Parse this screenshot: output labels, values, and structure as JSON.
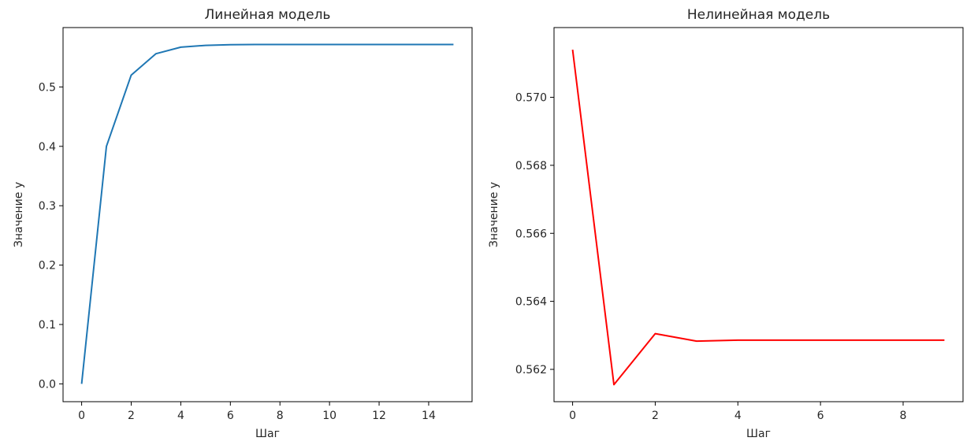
{
  "chart_data": [
    {
      "type": "line",
      "title": "Линейная модель",
      "xlabel": "Шаг",
      "ylabel": "Значение y",
      "xlim": [
        -0.75,
        15.75
      ],
      "ylim": [
        -0.03,
        0.6
      ],
      "xticks": [
        0,
        2,
        4,
        6,
        8,
        10,
        12,
        14
      ],
      "yticks": [
        0.0,
        0.1,
        0.2,
        0.3,
        0.4,
        0.5
      ],
      "ytick_labels": [
        "0.0",
        "0.1",
        "0.2",
        "0.3",
        "0.4",
        "0.5"
      ],
      "grid": false,
      "series": [
        {
          "color": "#1f77b4",
          "x": [
            0,
            1,
            2,
            3,
            4,
            5,
            6,
            7,
            8,
            9,
            10,
            11,
            12,
            13,
            14,
            15
          ],
          "y": [
            0.0,
            0.4,
            0.52,
            0.556,
            0.567,
            0.57,
            0.5712,
            0.5714,
            0.5714,
            0.5714,
            0.5714,
            0.5714,
            0.5714,
            0.5714,
            0.5714,
            0.5714
          ]
        }
      ]
    },
    {
      "type": "line",
      "title": "Нелинейная модель",
      "xlabel": "Шаг",
      "ylabel": "Значение y",
      "xlim": [
        -0.45,
        9.45
      ],
      "ylim": [
        0.56105,
        0.57205
      ],
      "xticks": [
        0,
        2,
        4,
        6,
        8
      ],
      "yticks": [
        0.562,
        0.564,
        0.566,
        0.568,
        0.57
      ],
      "ytick_labels": [
        "0.562",
        "0.564",
        "0.566",
        "0.568",
        "0.570"
      ],
      "grid": false,
      "series": [
        {
          "color": "#ff0000",
          "x": [
            0,
            1,
            2,
            3,
            4,
            5,
            6,
            7,
            8,
            9
          ],
          "y": [
            0.5714,
            0.56155,
            0.56305,
            0.56283,
            0.56286,
            0.56286,
            0.56286,
            0.56286,
            0.56286,
            0.56286
          ]
        }
      ]
    }
  ]
}
